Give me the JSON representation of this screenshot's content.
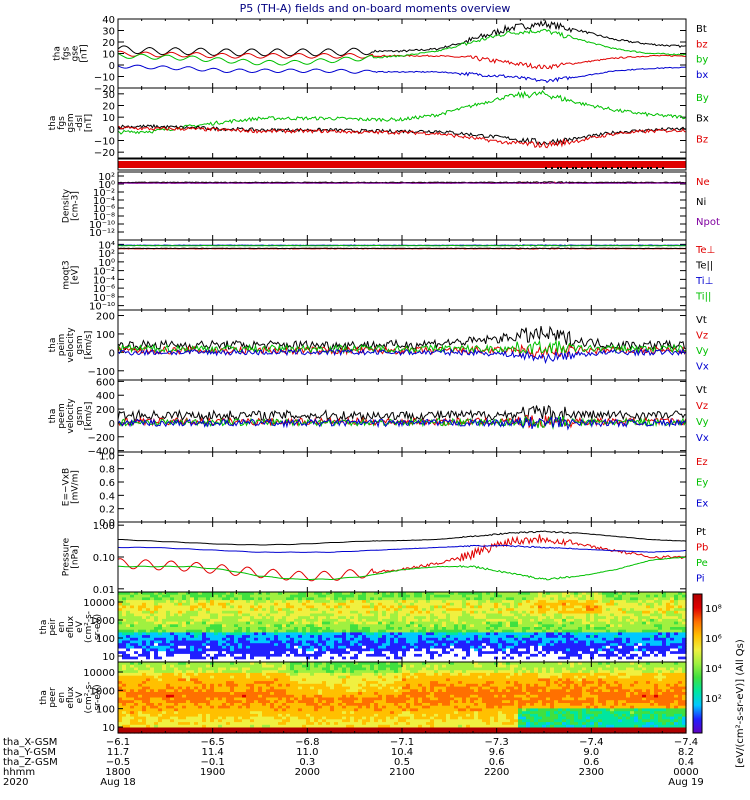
{
  "title": "P5 (TH-A) fields and on-board moments overview",
  "colors": {
    "black": "#000000",
    "red": "#e00000",
    "green": "#00c000",
    "blue": "#0000d0",
    "purple": "#8000a0"
  },
  "chart_data": [
    {
      "type": "line",
      "id": "fgs-gse",
      "ylabel": [
        "tha",
        "fgs",
        "gse",
        "[nT]"
      ],
      "ylim": [
        -20,
        40
      ],
      "yticks": [
        "40",
        "30",
        "20",
        "10",
        "0",
        "−10",
        "−20"
      ],
      "series": [
        {
          "name": "Bt",
          "color": "black",
          "base": [
            14,
            12,
            12,
            11,
            11,
            11,
            11,
            12,
            12,
            14,
            22,
            32,
            36,
            30,
            22,
            18,
            16
          ],
          "osc": 3
        },
        {
          "name": "bz",
          "color": "red",
          "base": [
            10,
            9,
            9,
            8,
            8,
            8,
            8,
            8,
            8,
            8,
            6,
            2,
            -2,
            2,
            6,
            8,
            8
          ],
          "osc": 2
        },
        {
          "name": "by",
          "color": "green",
          "base": [
            8,
            7,
            6,
            4,
            2,
            2,
            4,
            6,
            8,
            12,
            20,
            28,
            30,
            22,
            14,
            10,
            9
          ],
          "osc": 2
        },
        {
          "name": "bx",
          "color": "blue",
          "base": [
            -1,
            -2,
            -3,
            -5,
            -5,
            -5,
            -5,
            -6,
            -6,
            -6,
            -8,
            -10,
            -14,
            -10,
            -5,
            -3,
            -2
          ],
          "osc": 1.5
        }
      ]
    },
    {
      "type": "line",
      "id": "fgs-gsm",
      "ylabel": [
        "tha",
        "fgs",
        "gsm",
        "-dsl",
        "[nT]"
      ],
      "ylim": [
        -25,
        35
      ],
      "yticks": [
        "30",
        "20",
        "10",
        "0",
        "−10",
        "−20"
      ],
      "series": [
        {
          "name": "By",
          "color": "green",
          "base": [
            -3,
            -2,
            2,
            6,
            9,
            9,
            9,
            8,
            8,
            12,
            20,
            28,
            30,
            22,
            16,
            12,
            10
          ],
          "osc": 1.5
        },
        {
          "name": "Bx",
          "color": "black",
          "base": [
            2,
            2,
            1,
            0,
            -1,
            -1,
            -1,
            -2,
            -2,
            -2,
            -5,
            -8,
            -12,
            -8,
            -3,
            -1,
            0
          ],
          "osc": 1.5
        },
        {
          "name": "Bz",
          "color": "red",
          "base": [
            1,
            0,
            0,
            -1,
            -2,
            -2,
            -2,
            -3,
            -3,
            -4,
            -8,
            -12,
            -14,
            -10,
            -4,
            -2,
            -1
          ],
          "osc": 1.5
        }
      ]
    },
    {
      "type": "line",
      "id": "density",
      "log": true,
      "ylabel": [
        "Density",
        "[cm-3]"
      ],
      "ylim": [
        -14,
        3
      ],
      "yticks": [
        "10²",
        "10⁰",
        "10⁻²",
        "10⁻⁴",
        "10⁻⁶",
        "10⁻⁸",
        "10⁻¹⁰",
        "10⁻¹²"
      ],
      "series": [
        {
          "name": "Ne",
          "color": "red",
          "base": [
            0.3,
            0.3,
            0.3,
            0.3,
            0.3,
            0.3,
            0.3,
            0.3,
            0.3,
            0.3,
            0.3,
            0.3,
            0.3,
            0.3,
            0.3,
            0.3,
            0.3
          ],
          "osc": 0.1
        },
        {
          "name": "Ni",
          "color": "black",
          "base": [
            0.4,
            0.4,
            0.4,
            0.4,
            0.4,
            0.4,
            0.4,
            0.4,
            0.4,
            0.4,
            0.4,
            0.4,
            0.4,
            0.4,
            0.4,
            0.4,
            0.4
          ],
          "osc": 0.1
        },
        {
          "name": "Npot",
          "color": "purple",
          "base": [
            0.2,
            0.2,
            0.2,
            0.2,
            0.2,
            0.2,
            0.2,
            0.2,
            0.2,
            0.2,
            0.2,
            0.2,
            0.2,
            0.2,
            0.2,
            0.2,
            0.2
          ],
          "osc": 0.05
        }
      ]
    },
    {
      "type": "line",
      "id": "moqt3",
      "log": true,
      "ylabel": [
        "moqt3",
        "[eV]"
      ],
      "ylim": [
        -11,
        5
      ],
      "yticks": [
        "10⁴",
        "10²",
        "10⁰",
        "10⁻²",
        "10⁻⁴",
        "10⁻⁶",
        "10⁻⁸",
        "10⁻¹⁰"
      ],
      "series": [
        {
          "name": "Te⊥",
          "color": "red",
          "base": [
            3,
            3,
            3,
            3,
            3,
            3,
            3,
            3,
            3,
            3,
            3,
            3,
            3,
            3,
            3,
            3,
            3
          ],
          "osc": 0.05
        },
        {
          "name": "Te||",
          "color": "black",
          "base": [
            3.1,
            3.1,
            3.1,
            3.1,
            3.1,
            3.1,
            3.1,
            3.1,
            3.1,
            3.1,
            3.1,
            3.1,
            3.1,
            3.1,
            3.1,
            3.1,
            3.1
          ],
          "osc": 0.05
        },
        {
          "name": "Ti⊥",
          "color": "blue",
          "base": [
            3.8,
            3.8,
            3.8,
            3.8,
            3.8,
            3.8,
            3.8,
            3.8,
            3.8,
            3.8,
            3.8,
            3.8,
            3.8,
            3.8,
            3.8,
            3.8,
            3.8
          ],
          "osc": 0.05
        },
        {
          "name": "Ti||",
          "color": "green",
          "base": [
            3.7,
            3.7,
            3.7,
            3.7,
            3.7,
            3.7,
            3.7,
            3.7,
            3.7,
            3.7,
            3.7,
            3.7,
            3.7,
            3.7,
            3.7,
            3.7,
            3.7
          ],
          "osc": 0.05
        }
      ]
    },
    {
      "type": "line",
      "id": "peim-velocity",
      "ylabel": [
        "tha",
        "peim",
        "velocity",
        "gsm",
        "[km/s]"
      ],
      "ylim": [
        -150,
        230
      ],
      "yticks": [
        "200",
        "100",
        "0",
        "−100"
      ],
      "series": [
        {
          "name": "Vt",
          "color": "black",
          "base": [
            40,
            40,
            40,
            40,
            40,
            40,
            40,
            40,
            40,
            50,
            60,
            80,
            100,
            60,
            40,
            40,
            40
          ],
          "osc": 25
        },
        {
          "name": "Vz",
          "color": "red",
          "base": [
            10,
            10,
            10,
            10,
            10,
            10,
            10,
            10,
            10,
            10,
            10,
            10,
            0,
            10,
            10,
            10,
            10
          ],
          "osc": 20
        },
        {
          "name": "Vy",
          "color": "green",
          "base": [
            20,
            20,
            20,
            20,
            20,
            20,
            20,
            20,
            20,
            20,
            20,
            20,
            30,
            20,
            20,
            20,
            20
          ],
          "osc": 20
        },
        {
          "name": "Vx",
          "color": "blue",
          "base": [
            0,
            0,
            0,
            0,
            0,
            0,
            0,
            0,
            0,
            0,
            0,
            -10,
            -30,
            -10,
            0,
            0,
            0
          ],
          "osc": 15
        }
      ]
    },
    {
      "type": "line",
      "id": "peem-velocity",
      "ylabel": [
        "tha",
        "peem",
        "velocity",
        "gsm",
        "[km/s]"
      ],
      "ylim": [
        -420,
        620
      ],
      "yticks": [
        "600",
        "400",
        "200",
        "0",
        "−200",
        "−400"
      ],
      "series": [
        {
          "name": "Vt",
          "color": "black",
          "base": [
            110,
            110,
            110,
            110,
            110,
            110,
            110,
            110,
            110,
            110,
            110,
            120,
            140,
            120,
            110,
            110,
            110
          ],
          "osc": 70
        },
        {
          "name": "Vz",
          "color": "red",
          "base": [
            20,
            20,
            20,
            20,
            20,
            20,
            20,
            20,
            20,
            20,
            20,
            20,
            20,
            20,
            20,
            20,
            20
          ],
          "osc": 50
        },
        {
          "name": "Vy",
          "color": "green",
          "base": [
            10,
            10,
            10,
            10,
            10,
            10,
            10,
            10,
            10,
            10,
            10,
            10,
            10,
            10,
            10,
            10,
            10
          ],
          "osc": 50
        },
        {
          "name": "Vx",
          "color": "blue",
          "base": [
            0,
            0,
            0,
            0,
            0,
            0,
            0,
            0,
            0,
            0,
            0,
            0,
            0,
            0,
            0,
            0,
            0
          ],
          "osc": 50
        }
      ]
    },
    {
      "type": "line",
      "id": "efield",
      "ylabel": [
        "E=−VxB",
        "[mV/m]"
      ],
      "ylim": [
        0,
        1.05
      ],
      "yticks": [
        "1.0",
        "0.8",
        "0.6",
        "0.4",
        "0.2",
        "0.0"
      ],
      "series": [
        {
          "name": "Ez",
          "color": "red",
          "base": [],
          "osc": 0
        },
        {
          "name": "Ey",
          "color": "green",
          "base": [],
          "osc": 0
        },
        {
          "name": "Ex",
          "color": "blue",
          "base": [],
          "osc": 0
        }
      ]
    },
    {
      "type": "line",
      "id": "pressure",
      "log": true,
      "ylabel": [
        "Pressure",
        "[nPa]"
      ],
      "ylim": [
        -2.1,
        0.1
      ],
      "yticks": [
        "1.00",
        "0.10",
        "0.01"
      ],
      "ytick_logs": [
        0,
        -1,
        -2
      ],
      "series": [
        {
          "name": "Pt",
          "color": "black",
          "base": [
            -0.45,
            -0.5,
            -0.55,
            -0.6,
            -0.62,
            -0.6,
            -0.55,
            -0.5,
            -0.48,
            -0.45,
            -0.35,
            -0.25,
            -0.2,
            -0.25,
            -0.35,
            -0.45,
            -0.5
          ],
          "osc": 0.02
        },
        {
          "name": "Pb",
          "color": "red",
          "base": [
            -1.2,
            -1.25,
            -1.3,
            -1.4,
            -1.5,
            -1.6,
            -1.6,
            -1.5,
            -1.4,
            -1.2,
            -0.9,
            -0.5,
            -0.4,
            -0.6,
            -0.8,
            -1.0,
            -1.0
          ],
          "osc": 0.15
        },
        {
          "name": "Pe",
          "color": "green",
          "base": [
            -1.3,
            -1.3,
            -1.3,
            -1.4,
            -1.6,
            -1.7,
            -1.7,
            -1.6,
            -1.4,
            -1.3,
            -1.3,
            -1.5,
            -1.7,
            -1.6,
            -1.4,
            -1.1,
            -1.0
          ],
          "osc": 0.03
        },
        {
          "name": "Pi",
          "color": "blue",
          "base": [
            -0.7,
            -0.7,
            -0.75,
            -0.8,
            -0.85,
            -0.85,
            -0.85,
            -0.8,
            -0.75,
            -0.7,
            -0.65,
            -0.65,
            -0.7,
            -0.75,
            -0.8,
            -0.85,
            -0.8
          ],
          "osc": 0.02
        }
      ]
    },
    {
      "type": "heatmap",
      "id": "peir",
      "ylabel": [
        "tha",
        "peir",
        "en",
        "eflux",
        "eV",
        "(cm²-s-",
        "sr-eV)"
      ],
      "yticks": [
        "10000",
        "1000",
        "100",
        "10"
      ]
    },
    {
      "type": "heatmap",
      "id": "peer",
      "ylabel": [
        "tha",
        "peer",
        "en",
        "eflux",
        "eV",
        "(cm²-s-",
        "sr-eV)"
      ],
      "yticks": [
        "10000",
        "1000",
        "100",
        "10"
      ]
    }
  ],
  "colorbar": {
    "label": "[eV/(cm²-s-sr-eV)]",
    "label2": "(All Qs)",
    "ticks": [
      "10⁸",
      "10⁶",
      "10⁴",
      "10²"
    ]
  },
  "xaxis": {
    "rows": [
      {
        "label": "tha_X-GSM",
        "values": [
          "−6.1",
          "−6.5",
          "−6.8",
          "−7.1",
          "−7.3",
          "−7.4",
          "−7.4"
        ]
      },
      {
        "label": "tha_Y-GSM",
        "values": [
          "11.7",
          "11.4",
          "11.0",
          "10.4",
          "9.6",
          "9.0",
          "8.2"
        ]
      },
      {
        "label": "tha_Z-GSM",
        "values": [
          "−0.5",
          "−0.1",
          "0.3",
          "0.5",
          "0.6",
          "0.6",
          "0.4"
        ]
      },
      {
        "label": "hhmm",
        "values": [
          "1800",
          "1900",
          "2000",
          "2100",
          "2200",
          "2300",
          "0000"
        ]
      }
    ],
    "year": "2020",
    "start_date": "Aug 18",
    "end_date": "Aug 19"
  }
}
